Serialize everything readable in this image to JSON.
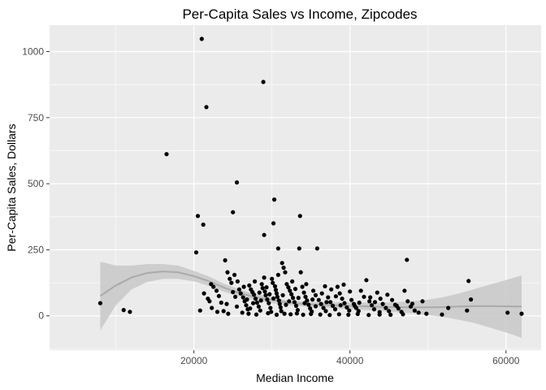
{
  "chart_data": {
    "type": "scatter",
    "title": "Per-Capita Sales vs Income, Zipcodes",
    "xlabel": "Median Income",
    "ylabel": "Per-Capita Sales, Dollars",
    "xlim": [
      1500,
      64500
    ],
    "ylim": [
      -130,
      1100
    ],
    "x_ticks": [
      20000,
      40000,
      60000
    ],
    "x_tick_labels": [
      "20000",
      "40000",
      "60000"
    ],
    "y_ticks": [
      0,
      250,
      500,
      750,
      1000
    ],
    "y_tick_labels": [
      "0",
      "250",
      "500",
      "750",
      "1000"
    ],
    "grid": true,
    "legend": "none",
    "colors": {
      "panel": "#ebebeb",
      "grid": "#ffffff",
      "point": "#000000",
      "smooth_line": "#aaaaaa",
      "ribbon": "#c8c8c8"
    },
    "smooth": {
      "x": [
        8000,
        10000,
        12000,
        14000,
        16000,
        18000,
        20000,
        22000,
        24000,
        26000,
        28000,
        30000,
        32000,
        34000,
        36000,
        38000,
        40000,
        42000,
        44000,
        46000,
        48000,
        50000,
        52000,
        54000,
        56000,
        58000,
        60000,
        62000
      ],
      "y": [
        75,
        115,
        145,
        162,
        168,
        165,
        150,
        130,
        105,
        85,
        70,
        60,
        50,
        45,
        42,
        40,
        38,
        36,
        34,
        33,
        32,
        32,
        33,
        35,
        37,
        37,
        36,
        35
      ],
      "lower": [
        -55,
        40,
        100,
        128,
        140,
        140,
        130,
        112,
        90,
        72,
        58,
        48,
        42,
        36,
        32,
        28,
        25,
        22,
        18,
        14,
        9,
        3,
        -5,
        -15,
        -28,
        -45,
        -63,
        -83
      ],
      "upper": [
        205,
        190,
        190,
        196,
        196,
        190,
        170,
        148,
        120,
        98,
        82,
        72,
        58,
        54,
        52,
        52,
        51,
        50,
        50,
        52,
        55,
        61,
        71,
        85,
        102,
        119,
        135,
        153
      ]
    },
    "points": [
      [
        8000,
        48
      ],
      [
        11000,
        22
      ],
      [
        11800,
        15
      ],
      [
        16500,
        612
      ],
      [
        20300,
        240
      ],
      [
        20500,
        378
      ],
      [
        21000,
        1048
      ],
      [
        21200,
        345
      ],
      [
        21600,
        790
      ],
      [
        25000,
        392
      ],
      [
        25500,
        505
      ],
      [
        28900,
        885
      ],
      [
        29000,
        306
      ],
      [
        30200,
        350
      ],
      [
        30300,
        440
      ],
      [
        30800,
        255
      ],
      [
        33600,
        378
      ],
      [
        33500,
        255
      ],
      [
        35800,
        255
      ],
      [
        47300,
        212
      ],
      [
        55200,
        132
      ],
      [
        55500,
        62
      ],
      [
        60200,
        12
      ],
      [
        62000,
        8
      ],
      [
        20800,
        20
      ],
      [
        21300,
        85
      ],
      [
        22000,
        55
      ],
      [
        22300,
        30
      ],
      [
        22500,
        110
      ],
      [
        22900,
        95
      ],
      [
        23200,
        75
      ],
      [
        23500,
        50
      ],
      [
        23800,
        18
      ],
      [
        24000,
        210
      ],
      [
        24300,
        165
      ],
      [
        24600,
        140
      ],
      [
        24800,
        125
      ],
      [
        25200,
        155
      ],
      [
        25600,
        130
      ],
      [
        25800,
        100
      ],
      [
        26000,
        85
      ],
      [
        26300,
        70
      ],
      [
        26500,
        55
      ],
      [
        26700,
        40
      ],
      [
        26900,
        25
      ],
      [
        27100,
        115
      ],
      [
        27300,
        100
      ],
      [
        27500,
        90
      ],
      [
        27700,
        80
      ],
      [
        27900,
        65
      ],
      [
        28100,
        50
      ],
      [
        28300,
        35
      ],
      [
        28500,
        20
      ],
      [
        28700,
        120
      ],
      [
        28800,
        105
      ],
      [
        29100,
        92
      ],
      [
        29200,
        78
      ],
      [
        29400,
        62
      ],
      [
        29600,
        48
      ],
      [
        29800,
        30
      ],
      [
        29900,
        15
      ],
      [
        30000,
        140
      ],
      [
        30100,
        125
      ],
      [
        30400,
        112
      ],
      [
        30500,
        98
      ],
      [
        30600,
        85
      ],
      [
        30700,
        72
      ],
      [
        30900,
        58
      ],
      [
        31000,
        45
      ],
      [
        31100,
        32
      ],
      [
        31200,
        18
      ],
      [
        31300,
        200
      ],
      [
        31500,
        182
      ],
      [
        31700,
        165
      ],
      [
        31900,
        120
      ],
      [
        32100,
        108
      ],
      [
        32300,
        95
      ],
      [
        32500,
        82
      ],
      [
        32700,
        68
      ],
      [
        32900,
        52
      ],
      [
        33100,
        38
      ],
      [
        33300,
        22
      ],
      [
        33700,
        165
      ],
      [
        33900,
        110
      ],
      [
        34100,
        88
      ],
      [
        34300,
        72
      ],
      [
        34500,
        58
      ],
      [
        34700,
        42
      ],
      [
        34900,
        28
      ],
      [
        35100,
        16
      ],
      [
        35300,
        95
      ],
      [
        35600,
        78
      ],
      [
        36000,
        60
      ],
      [
        36300,
        45
      ],
      [
        36600,
        30
      ],
      [
        36900,
        18
      ],
      [
        37200,
        70
      ],
      [
        37500,
        52
      ],
      [
        37800,
        38
      ],
      [
        38100,
        25
      ],
      [
        38400,
        110
      ],
      [
        38700,
        85
      ],
      [
        39000,
        65
      ],
      [
        39300,
        48
      ],
      [
        39600,
        32
      ],
      [
        39900,
        20
      ],
      [
        40200,
        60
      ],
      [
        40500,
        45
      ],
      [
        40800,
        30
      ],
      [
        41100,
        18
      ],
      [
        41400,
        95
      ],
      [
        41800,
        72
      ],
      [
        42100,
        135
      ],
      [
        42500,
        55
      ],
      [
        42800,
        40
      ],
      [
        43100,
        25
      ],
      [
        43500,
        88
      ],
      [
        43900,
        65
      ],
      [
        44200,
        45
      ],
      [
        44600,
        30
      ],
      [
        45000,
        18
      ],
      [
        45400,
        60
      ],
      [
        45800,
        42
      ],
      [
        46200,
        28
      ],
      [
        46600,
        15
      ],
      [
        47000,
        95
      ],
      [
        47400,
        55
      ],
      [
        47800,
        35
      ],
      [
        48300,
        20
      ],
      [
        48800,
        12
      ],
      [
        49300,
        55
      ],
      [
        49800,
        8
      ],
      [
        51800,
        5
      ],
      [
        52600,
        30
      ],
      [
        55000,
        20
      ],
      [
        26200,
        12
      ],
      [
        27000,
        8
      ],
      [
        28000,
        5
      ],
      [
        29500,
        10
      ],
      [
        30600,
        4
      ],
      [
        31600,
        8
      ],
      [
        32400,
        6
      ],
      [
        33200,
        9
      ],
      [
        34000,
        4
      ],
      [
        35000,
        7
      ],
      [
        36200,
        5
      ],
      [
        37400,
        3
      ],
      [
        38600,
        6
      ],
      [
        39800,
        4
      ],
      [
        41000,
        7
      ],
      [
        42400,
        3
      ],
      [
        43800,
        5
      ],
      [
        45200,
        4
      ],
      [
        46800,
        6
      ],
      [
        25500,
        35
      ],
      [
        26800,
        62
      ],
      [
        27600,
        48
      ],
      [
        28400,
        88
      ],
      [
        29300,
        108
      ],
      [
        30200,
        66
      ],
      [
        31400,
        78
      ],
      [
        32200,
        55
      ],
      [
        33000,
        102
      ],
      [
        34200,
        48
      ],
      [
        35200,
        62
      ],
      [
        36400,
        85
      ],
      [
        37600,
        100
      ],
      [
        38800,
        40
      ],
      [
        40000,
        92
      ],
      [
        41200,
        50
      ],
      [
        42600,
        70
      ],
      [
        43800,
        14
      ],
      [
        44800,
        80
      ],
      [
        24200,
        45
      ],
      [
        23000,
        15
      ],
      [
        22200,
        120
      ],
      [
        21800,
        65
      ],
      [
        25000,
        90
      ],
      [
        26400,
        110
      ],
      [
        27800,
        130
      ],
      [
        29000,
        145
      ],
      [
        30800,
        155
      ],
      [
        32600,
        130
      ],
      [
        34400,
        120
      ],
      [
        36800,
        112
      ],
      [
        39200,
        118
      ],
      [
        24400,
        8
      ],
      [
        25300,
        72
      ],
      [
        27200,
        28
      ],
      [
        28600,
        58
      ],
      [
        29700,
        82
      ],
      [
        31800,
        42
      ],
      [
        33400,
        68
      ],
      [
        35600,
        36
      ],
      [
        37000,
        52
      ],
      [
        38200,
        74
      ],
      [
        40600,
        38
      ],
      [
        43200,
        52
      ],
      [
        46000,
        38
      ],
      [
        48000,
        46
      ]
    ]
  }
}
